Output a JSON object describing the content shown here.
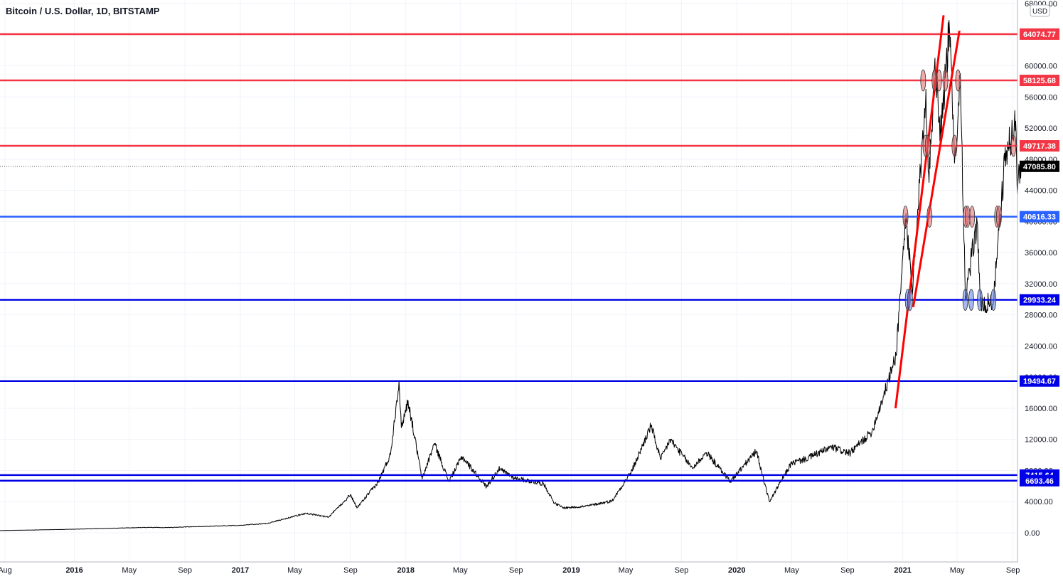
{
  "chart_data": {
    "type": "line",
    "title": "Bitcoin / U.S. Dollar, 1D, BITSTAMP",
    "currency_badge": "USD",
    "ylim": [
      0,
      68000
    ],
    "y_ticks": [
      {
        "value": 68000,
        "label": "68000.00"
      },
      {
        "value": 64000,
        "label": "64000.00"
      },
      {
        "value": 60000,
        "label": "60000.00"
      },
      {
        "value": 56000,
        "label": "56000.00"
      },
      {
        "value": 52000,
        "label": "52000.00"
      },
      {
        "value": 48000,
        "label": "48000.00"
      },
      {
        "value": 44000,
        "label": "44000.00"
      },
      {
        "value": 40000,
        "label": "40000.00"
      },
      {
        "value": 36000,
        "label": "36000.00"
      },
      {
        "value": 32000,
        "label": "32000.00"
      },
      {
        "value": 28000,
        "label": "28000.00"
      },
      {
        "value": 24000,
        "label": "24000.00"
      },
      {
        "value": 20000,
        "label": "20000.00"
      },
      {
        "value": 16000,
        "label": "16000.00"
      },
      {
        "value": 12000,
        "label": "12000.00"
      },
      {
        "value": 8000,
        "label": "8000.00"
      },
      {
        "value": 4000,
        "label": "4000.00"
      },
      {
        "value": 0,
        "label": "0.00"
      }
    ],
    "x_ticks": [
      {
        "date": "2015-08-01",
        "label": "Aug",
        "bold": false
      },
      {
        "date": "2016-01-01",
        "label": "2016",
        "bold": true
      },
      {
        "date": "2016-05-01",
        "label": "May",
        "bold": false
      },
      {
        "date": "2016-09-01",
        "label": "Sep",
        "bold": false
      },
      {
        "date": "2017-01-01",
        "label": "2017",
        "bold": true
      },
      {
        "date": "2017-05-01",
        "label": "May",
        "bold": false
      },
      {
        "date": "2017-09-01",
        "label": "Sep",
        "bold": false
      },
      {
        "date": "2018-01-01",
        "label": "2018",
        "bold": true
      },
      {
        "date": "2018-05-01",
        "label": "May",
        "bold": false
      },
      {
        "date": "2018-09-01",
        "label": "Sep",
        "bold": false
      },
      {
        "date": "2019-01-01",
        "label": "2019",
        "bold": true
      },
      {
        "date": "2019-05-01",
        "label": "May",
        "bold": false
      },
      {
        "date": "2019-09-01",
        "label": "Sep",
        "bold": false
      },
      {
        "date": "2020-01-01",
        "label": "2020",
        "bold": true
      },
      {
        "date": "2020-05-01",
        "label": "May",
        "bold": false
      },
      {
        "date": "2020-09-01",
        "label": "Sep",
        "bold": false
      },
      {
        "date": "2021-01-01",
        "label": "2021",
        "bold": true
      },
      {
        "date": "2021-05-01",
        "label": "May",
        "bold": false
      },
      {
        "date": "2021-09-01",
        "label": "Sep",
        "bold": false
      }
    ],
    "series": [
      {
        "color": "#000000",
        "points": [
          [
            "2015-07-01",
            260
          ],
          [
            "2015-12-15",
            440
          ],
          [
            "2016-06-15",
            700
          ],
          [
            "2016-07-15",
            660
          ],
          [
            "2016-12-31",
            960
          ],
          [
            "2017-03-01",
            1200
          ],
          [
            "2017-05-25",
            2500
          ],
          [
            "2017-07-15",
            2000
          ],
          [
            "2017-09-01",
            4900
          ],
          [
            "2017-09-15",
            3200
          ],
          [
            "2017-11-01",
            6500
          ],
          [
            "2017-11-28",
            10000
          ],
          [
            "2017-12-17",
            19500
          ],
          [
            "2017-12-22",
            13500
          ],
          [
            "2018-01-06",
            17000
          ],
          [
            "2018-02-06",
            6900
          ],
          [
            "2018-03-05",
            11500
          ],
          [
            "2018-04-06",
            6600
          ],
          [
            "2018-05-05",
            9800
          ],
          [
            "2018-06-28",
            5900
          ],
          [
            "2018-07-25",
            8200
          ],
          [
            "2018-09-01",
            7000
          ],
          [
            "2018-11-01",
            6300
          ],
          [
            "2018-11-25",
            3800
          ],
          [
            "2018-12-15",
            3200
          ],
          [
            "2019-02-01",
            3400
          ],
          [
            "2019-04-01",
            4100
          ],
          [
            "2019-05-15",
            8000
          ],
          [
            "2019-06-26",
            13800
          ],
          [
            "2019-07-17",
            9400
          ],
          [
            "2019-08-07",
            12000
          ],
          [
            "2019-09-25",
            8300
          ],
          [
            "2019-10-26",
            10300
          ],
          [
            "2019-12-18",
            6600
          ],
          [
            "2020-02-13",
            10500
          ],
          [
            "2020-03-13",
            4000
          ],
          [
            "2020-04-30",
            8900
          ],
          [
            "2020-06-01",
            9500
          ],
          [
            "2020-07-28",
            11000
          ],
          [
            "2020-09-06",
            10200
          ],
          [
            "2020-10-25",
            13000
          ],
          [
            "2020-11-30",
            19500
          ],
          [
            "2020-12-17",
            22800
          ],
          [
            "2021-01-08",
            41000
          ],
          [
            "2021-01-22",
            30500
          ],
          [
            "2021-02-21",
            57000
          ],
          [
            "2021-02-28",
            45000
          ],
          [
            "2021-03-13",
            61000
          ],
          [
            "2021-03-25",
            51500
          ],
          [
            "2021-04-14",
            64800
          ],
          [
            "2021-04-25",
            47500
          ],
          [
            "2021-05-08",
            59000
          ],
          [
            "2021-05-19",
            30000
          ],
          [
            "2021-06-14",
            40000
          ],
          [
            "2021-06-22",
            29000
          ],
          [
            "2021-07-20",
            29800
          ],
          [
            "2021-08-14",
            47800
          ],
          [
            "2021-08-22",
            49500
          ],
          [
            "2021-09-07",
            52900
          ],
          [
            "2021-09-10",
            44500
          ],
          [
            "2021-09-19",
            47085.8
          ]
        ]
      }
    ],
    "current_price": {
      "value": 47085.8,
      "label": "47085.80",
      "color": "#000000"
    },
    "horizontal_levels": [
      {
        "value": 64074.77,
        "label": "64074.77",
        "color": "#f23645"
      },
      {
        "value": 58125.68,
        "label": "58125.68",
        "color": "#f23645"
      },
      {
        "value": 49717.38,
        "label": "49717.38",
        "color": "#f23645"
      },
      {
        "value": 40616.33,
        "label": "40616.33",
        "color": "#2962ff"
      },
      {
        "value": 29933.24,
        "label": "29933.24",
        "color": "#0000e6"
      },
      {
        "value": 19494.67,
        "label": "19494.67",
        "color": "#0000e6"
      },
      {
        "value": 7415.64,
        "label": "7415.64",
        "color": "#0000e6"
      },
      {
        "value": 6693.46,
        "label": "6693.46",
        "color": "#0000e6"
      }
    ],
    "trend_lines": [
      {
        "color": "#ff0000",
        "from": [
          "2020-12-16",
          16000
        ],
        "to": [
          "2021-04-01",
          66500
        ]
      },
      {
        "color": "#ff0000",
        "from": [
          "2021-01-24",
          29000
        ],
        "to": [
          "2021-05-06",
          64500
        ]
      }
    ],
    "touch_markers": [
      {
        "date": "2021-01-07",
        "value": 40616,
        "color": "#e06666"
      },
      {
        "date": "2021-02-20",
        "value": 49717,
        "color": "#e06666"
      },
      {
        "date": "2021-02-25",
        "value": 49717,
        "color": "#e06666"
      },
      {
        "date": "2021-02-15",
        "value": 58125,
        "color": "#e06666"
      },
      {
        "date": "2021-03-01",
        "value": 40616,
        "color": "#e06666"
      },
      {
        "date": "2021-03-12",
        "value": 58125,
        "color": "#e06666"
      },
      {
        "date": "2021-03-22",
        "value": 58125,
        "color": "#e06666"
      },
      {
        "date": "2021-04-05",
        "value": 58125,
        "color": "#e06666"
      },
      {
        "date": "2021-04-25",
        "value": 49717,
        "color": "#e06666"
      },
      {
        "date": "2021-05-03",
        "value": 58125,
        "color": "#e06666"
      },
      {
        "date": "2021-05-20",
        "value": 40616,
        "color": "#e06666"
      },
      {
        "date": "2021-05-24",
        "value": 40616,
        "color": "#e06666"
      },
      {
        "date": "2021-06-03",
        "value": 40616,
        "color": "#e06666"
      },
      {
        "date": "2021-07-28",
        "value": 40616,
        "color": "#e06666"
      },
      {
        "date": "2021-08-01",
        "value": 40616,
        "color": "#e06666"
      },
      {
        "date": "2021-09-02",
        "value": 49717,
        "color": "#e06666"
      },
      {
        "date": "2021-01-12",
        "value": 29933,
        "color": "#5b7fe0"
      },
      {
        "date": "2021-01-17",
        "value": 29933,
        "color": "#5b7fe0"
      },
      {
        "date": "2021-05-19",
        "value": 29933,
        "color": "#5b7fe0"
      },
      {
        "date": "2021-06-01",
        "value": 29933,
        "color": "#5b7fe0"
      },
      {
        "date": "2021-06-20",
        "value": 29933,
        "color": "#5b7fe0"
      },
      {
        "date": "2021-07-20",
        "value": 29933,
        "color": "#5b7fe0"
      }
    ],
    "grid": true
  }
}
